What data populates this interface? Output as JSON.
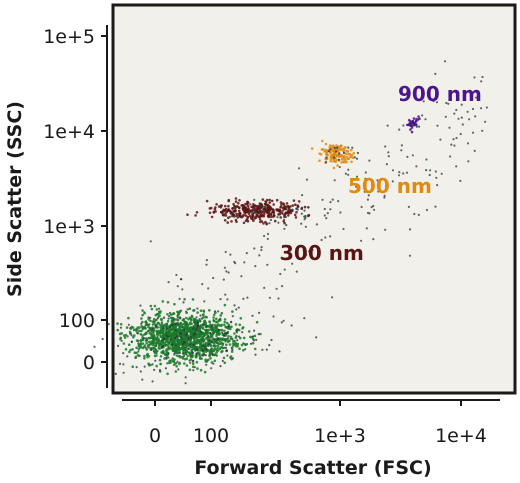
{
  "chart_data": {
    "type": "scatter",
    "xlabel": "Forward Scatter (FSC)",
    "ylabel": "Side Scatter (SSC)",
    "x_scale": "biexponential",
    "y_scale": "biexponential",
    "x_ticks": [
      {
        "value": 0,
        "label": "0"
      },
      {
        "value": 100,
        "label": "100"
      },
      {
        "value": 1000,
        "label": "1e+3"
      },
      {
        "value": 10000,
        "label": "1e+4"
      }
    ],
    "y_ticks": [
      {
        "value": 0,
        "label": "0"
      },
      {
        "value": 100,
        "label": "100"
      },
      {
        "value": 1000,
        "label": "1e+3"
      },
      {
        "value": 10000,
        "label": "1e+4"
      },
      {
        "value": 100000,
        "label": "1e+5"
      }
    ],
    "xlim": [
      -60,
      16000
    ],
    "ylim": [
      -60,
      160000
    ],
    "plot_background": "#f2f0ea",
    "frame_color": "#1a1a1a",
    "populations": [
      {
        "label": "",
        "color": "#1a7a2a",
        "fsc": 25,
        "ssc": 30,
        "n": 1200
      },
      {
        "label": "300 nm",
        "color": "#5a1414",
        "fsc": 230,
        "ssc": 1450,
        "n": 320
      },
      {
        "label": "500 nm",
        "color": "#e08a14",
        "fsc": 900,
        "ssc": 5700,
        "n": 130
      },
      {
        "label": "900 nm",
        "color": "#4b1490",
        "fsc": 4000,
        "ssc": 12500,
        "n": 35
      }
    ],
    "background_events": {
      "color": "#2a3a3a",
      "n": 240
    }
  }
}
